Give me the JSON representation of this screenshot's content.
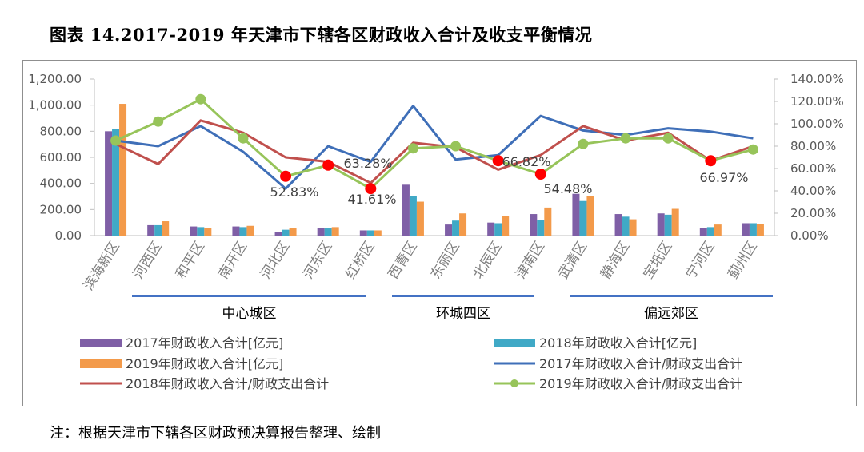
{
  "title": "图表 14.2017-2019 年天津市下辖各区财政收入合计及收支平衡情况",
  "note": "注：根据天津市下辖各区财政预决算报告整理、绘制",
  "colors": {
    "bar2017": "#7f5fa6",
    "bar2018": "#40a9c6",
    "bar2019": "#f39a4a",
    "line2017": "#3f6fb8",
    "line2018": "#c0504d",
    "line2019": "#97c45a",
    "marker_red": "#ff0000"
  },
  "chart_data": {
    "type": "bar",
    "categories": [
      "滨海新区",
      "河西区",
      "和平区",
      "南开区",
      "河北区",
      "河东区",
      "红桥区",
      "西青区",
      "东丽区",
      "北辰区",
      "津南区",
      "武清区",
      "静海区",
      "宝坻区",
      "宁河区",
      "蓟州区"
    ],
    "groups": [
      {
        "name": "中心城区",
        "from": 1,
        "to": 6
      },
      {
        "name": "环城四区",
        "from": 7,
        "to": 10
      },
      {
        "name": "偏远郊区",
        "from": 11,
        "to": 15
      }
    ],
    "left_axis": {
      "min": 0,
      "max": 1200,
      "step": 200,
      "ticks": [
        "0.00",
        "200.00",
        "400.00",
        "600.00",
        "800.00",
        "1,000.00",
        "1,200.00"
      ]
    },
    "right_axis": {
      "min": 0,
      "max": 1.4,
      "step": 0.2,
      "ticks": [
        "0.00%",
        "20.00%",
        "40.00%",
        "60.00%",
        "80.00%",
        "100.00%",
        "120.00%",
        "140.00%"
      ]
    },
    "bar_series": [
      {
        "name": "2017年财政收入合计[亿元]",
        "color_key": "bar2017",
        "values": [
          800,
          80,
          70,
          70,
          30,
          60,
          40,
          390,
          85,
          100,
          165,
          320,
          165,
          170,
          60,
          95
        ]
      },
      {
        "name": "2018年财政收入合计[亿元]",
        "color_key": "bar2018",
        "values": [
          815,
          80,
          65,
          65,
          45,
          55,
          40,
          300,
          115,
          95,
          120,
          265,
          145,
          160,
          65,
          95
        ]
      },
      {
        "name": "2019年财政收入合计[亿元]",
        "color_key": "bar2019",
        "values": [
          1010,
          110,
          60,
          75,
          55,
          65,
          40,
          260,
          170,
          150,
          215,
          300,
          125,
          205,
          85,
          90
        ]
      }
    ],
    "line_series": [
      {
        "name": "2017年财政收入合计/财政支出合计",
        "color_key": "line2017",
        "marker": false,
        "values": [
          0.85,
          0.8,
          0.98,
          0.75,
          0.42,
          0.8,
          0.66,
          1.16,
          0.68,
          0.72,
          1.07,
          0.94,
          0.9,
          0.96,
          0.93,
          0.87
        ]
      },
      {
        "name": "2018年财政收入合计/财政支出合计",
        "color_key": "line2018",
        "marker": false,
        "values": [
          0.82,
          0.64,
          1.03,
          0.92,
          0.7,
          0.66,
          0.47,
          0.83,
          0.79,
          0.59,
          0.72,
          0.98,
          0.85,
          0.92,
          0.67,
          0.8
        ]
      },
      {
        "name": "2019年财政收入合计/财政支出合计",
        "color_key": "line2019",
        "marker": true,
        "values": [
          0.85,
          1.02,
          1.22,
          0.87,
          0.53,
          0.63,
          0.42,
          0.78,
          0.8,
          0.67,
          0.55,
          0.82,
          0.87,
          0.87,
          0.67,
          0.77
        ]
      }
    ],
    "highlight_points": [
      4,
      5,
      6,
      9,
      10,
      14
    ],
    "annotations": [
      {
        "category": 4,
        "text": "52.83%"
      },
      {
        "category": 5,
        "text": "63.28%"
      },
      {
        "category": 6,
        "text": "41.61%"
      },
      {
        "category": 9,
        "text": "66.82%"
      },
      {
        "category": 10,
        "text": "54.48%"
      },
      {
        "category": 14,
        "text": "66.97%"
      }
    ]
  }
}
